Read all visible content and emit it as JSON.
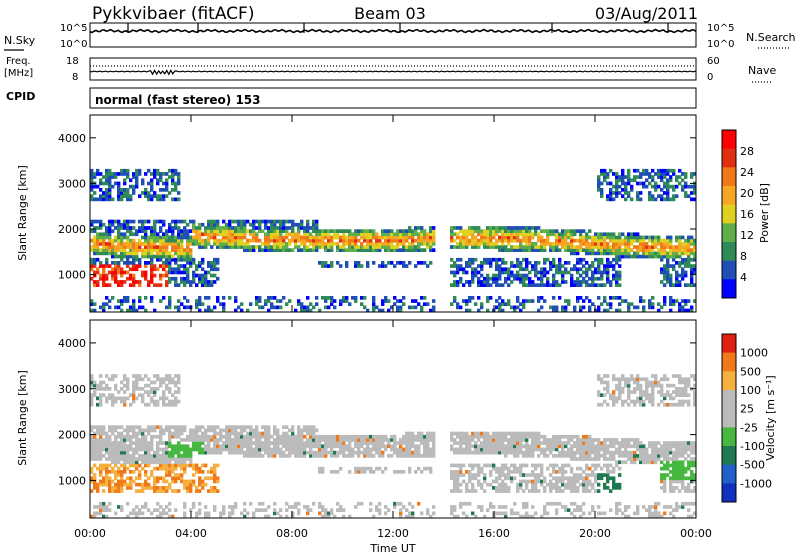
{
  "header": {
    "station": "Pykkvibaer (fitACF)",
    "beam": "Beam 03",
    "date": "03/Aug/2011"
  },
  "colors": {
    "power_scale": [
      "#0000ff",
      "#1f4fb4",
      "#2e8b57",
      "#5fae4a",
      "#e0d020",
      "#f5a623",
      "#f07a1a",
      "#e0300f",
      "#ff0000"
    ],
    "velocity_scale": [
      "#1030c0",
      "#2060c8",
      "#207a50",
      "#46b840",
      "#bbbbbb",
      "#bbbbbb",
      "#f5b040",
      "#f07a1a",
      "#e02010"
    ]
  },
  "chart_data": [
    {
      "type": "line",
      "name": "noise",
      "left_label": "N.Sky",
      "right_label": "N.Search",
      "y_ticks_left": [
        "10^5",
        "10^0"
      ],
      "y_ticks_right": [
        "10^5",
        "10^0"
      ],
      "log_scale": true
    },
    {
      "type": "line",
      "name": "frequency",
      "left_label_line1": "Freq.",
      "left_label_line2": "[MHz]",
      "right_label": "Nave",
      "y_ticks_left": [
        "18",
        "8"
      ],
      "y_ticks_right": [
        "60",
        "0"
      ]
    },
    {
      "type": "line",
      "name": "cpid",
      "left_label": "CPID",
      "annotation": "normal (fast stereo) 153"
    },
    {
      "type": "heatmap",
      "name": "power",
      "ylabel": "Slant Range [km]",
      "ylim": [
        180,
        4500
      ],
      "y_ticks": [
        "1000",
        "2000",
        "3000",
        "4000"
      ],
      "colorbar_label": "Power [dB]",
      "colorbar_ticks": [
        "28",
        "24",
        "20",
        "16",
        "12",
        "8",
        "4"
      ]
    },
    {
      "type": "heatmap",
      "name": "velocity",
      "ylabel": "Slant Range [km]",
      "ylim": [
        180,
        4500
      ],
      "y_ticks": [
        "1000",
        "2000",
        "3000",
        "4000"
      ],
      "colorbar_label": "Velocity [m s⁻¹]",
      "colorbar_ticks": [
        "1000",
        "500",
        "100",
        "25",
        "-25",
        "-100",
        "-500",
        "-1000"
      ]
    }
  ],
  "x_axis": {
    "label": "Time UT",
    "ticks": [
      "00:00",
      "04:00",
      "08:00",
      "12:00",
      "16:00",
      "20:00",
      "00:00"
    ]
  }
}
